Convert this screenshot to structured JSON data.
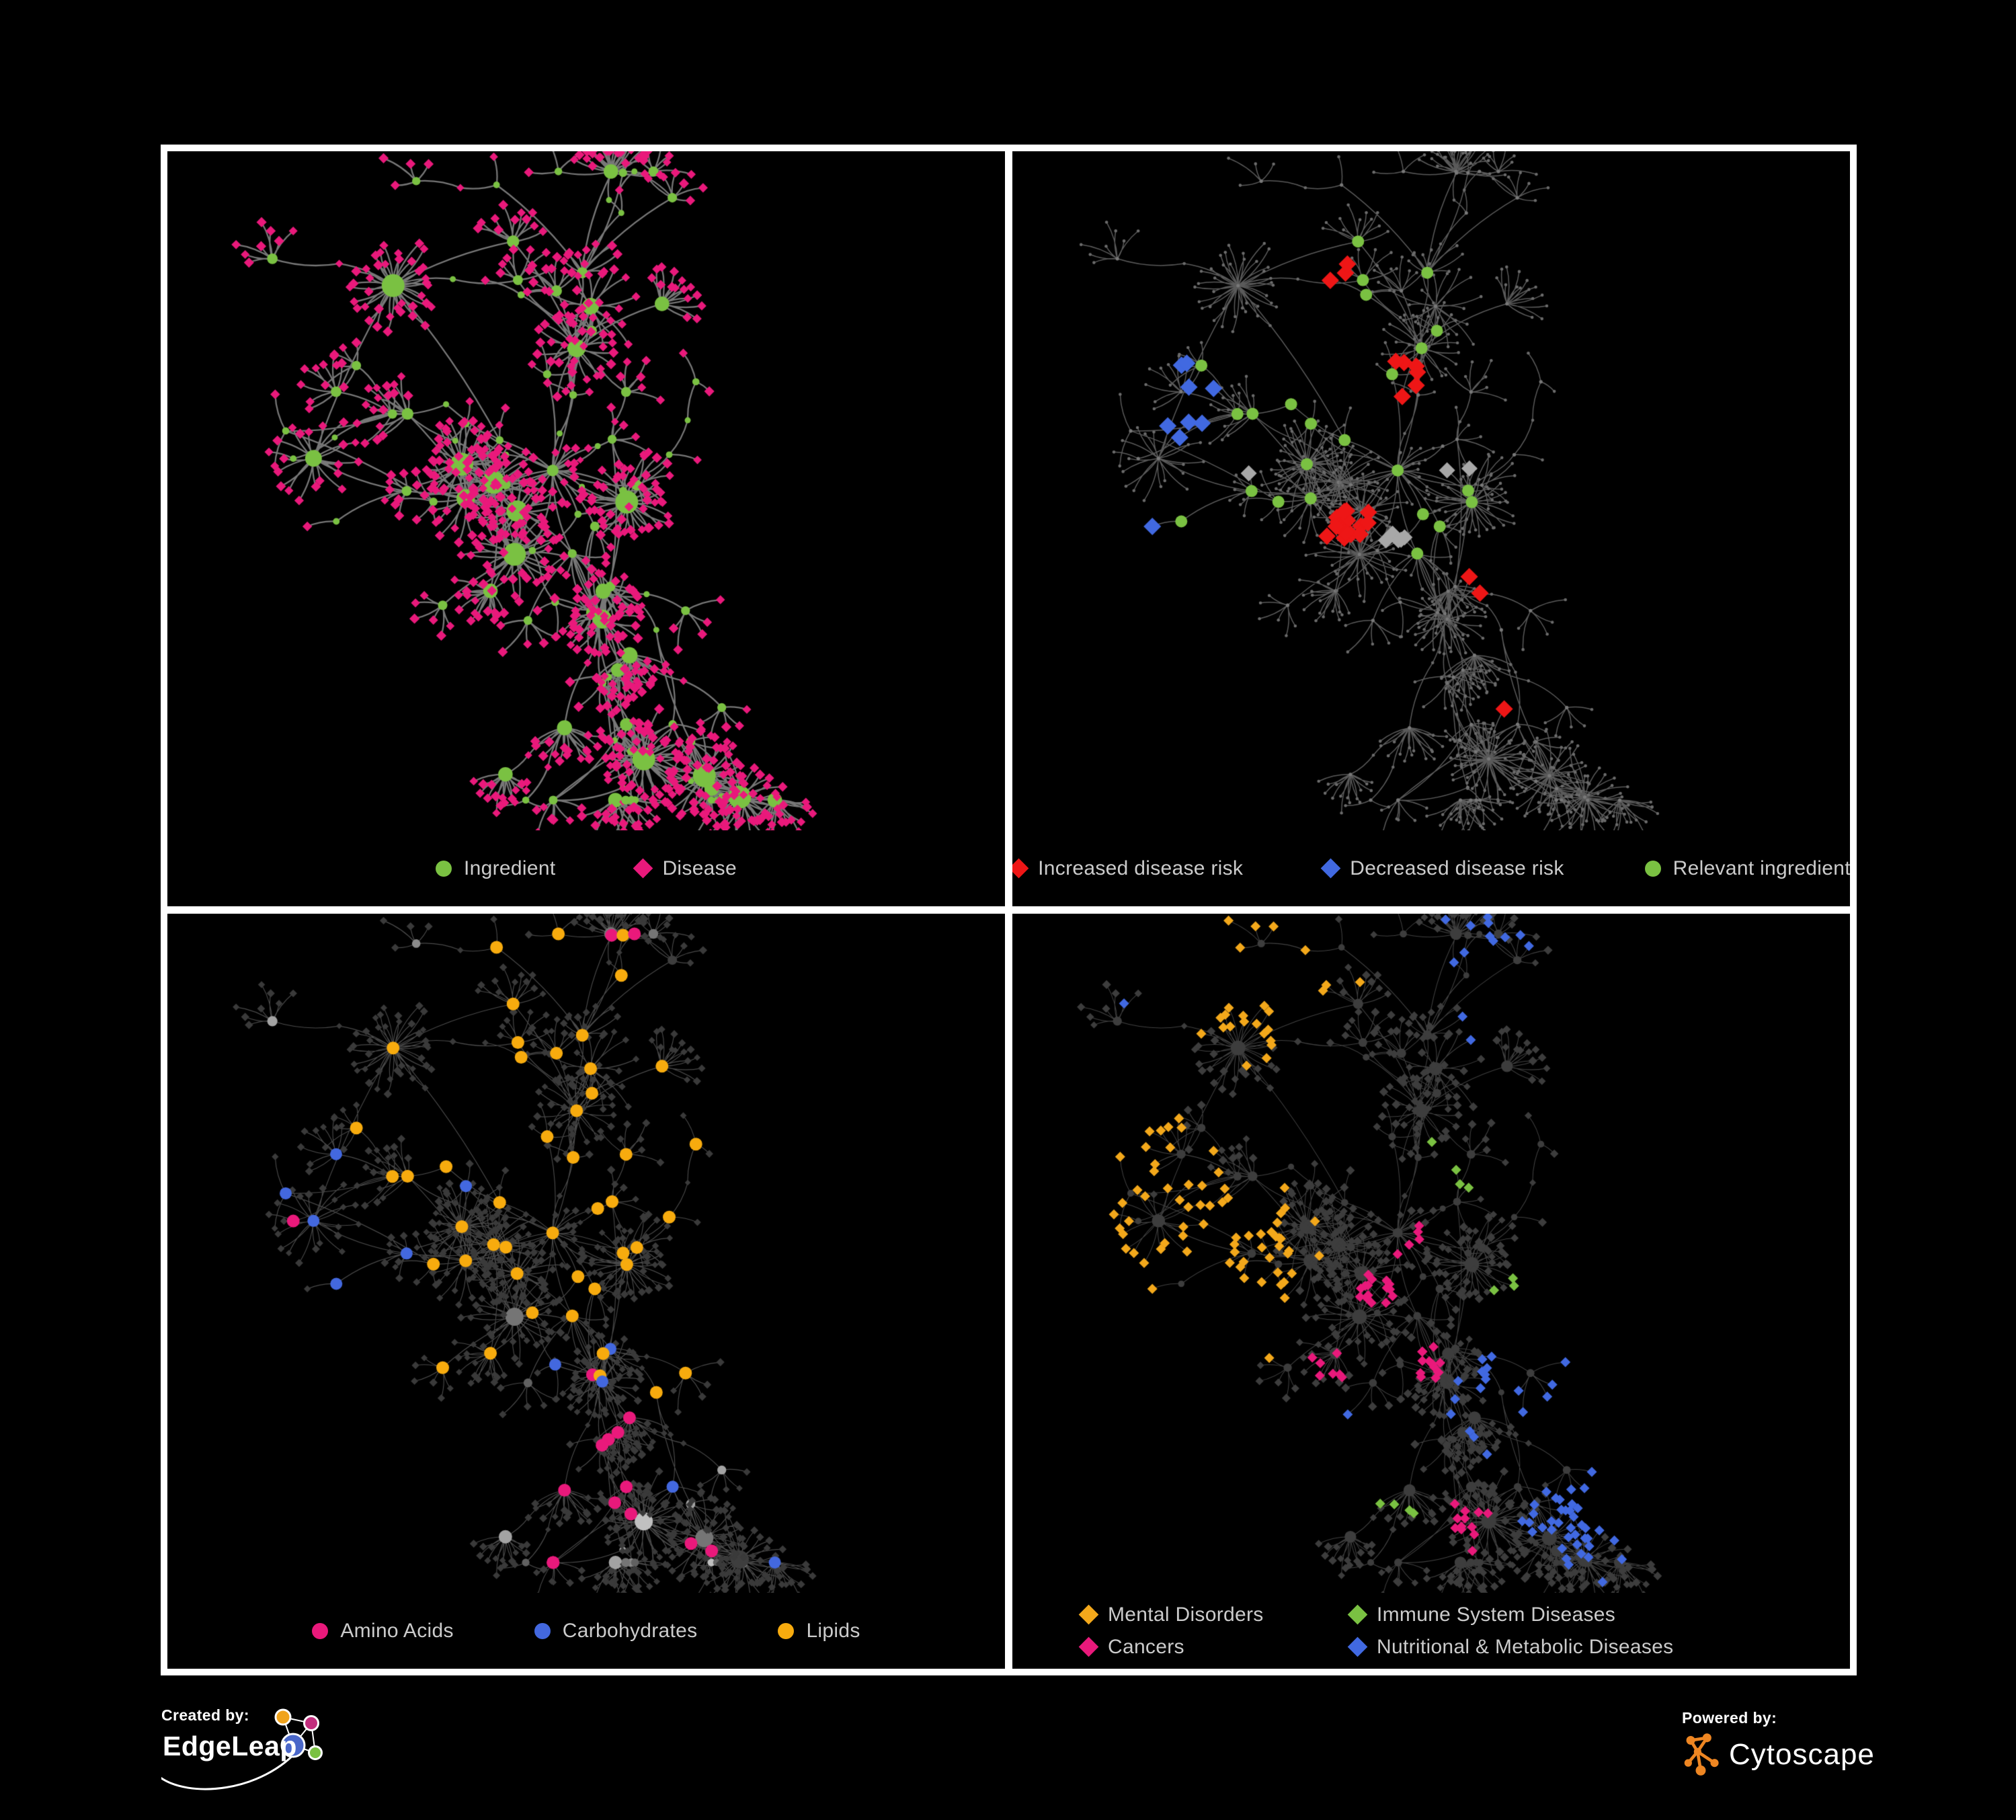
{
  "app": {
    "background": "#000000",
    "frame_color": "#ffffff",
    "legend_text_color": "#cbcbcb"
  },
  "network": {
    "seed": 1337,
    "hub_count": 95,
    "cross_links": 42
  },
  "panels": [
    {
      "id": "ingredient-disease",
      "legend": {
        "layout": "row",
        "items": [
          {
            "label": "Ingredient",
            "shape": "circle",
            "color": "#7ac142"
          },
          {
            "label": "Disease",
            "shape": "diamond",
            "color": "#e9197b"
          }
        ]
      },
      "style": {
        "edge_color": "#7d7d7d",
        "edge_width": 2.3,
        "edge_alpha": 0.95,
        "hub": {
          "shape": "circle",
          "color": "#7ac142",
          "r_min": 4.5,
          "r_scale": 0.42,
          "r_max": 17
        },
        "leaf": {
          "shape": "diamond",
          "color": "#e9197b",
          "s": 7
        },
        "chain": {
          "shape": "diamond",
          "color": "#e9197b",
          "s": 6,
          "mix": true
        }
      },
      "highlight_seed": 0,
      "highlights": []
    },
    {
      "id": "disease-risk",
      "legend": {
        "layout": "row",
        "items": [
          {
            "label": "Increased disease risk",
            "shape": "diamond",
            "color": "#ee1616"
          },
          {
            "label": "Decreased disease risk",
            "shape": "diamond",
            "color": "#4169e1"
          },
          {
            "label": "Relevant ingredient",
            "shape": "circle",
            "color": "#7ac142"
          }
        ]
      },
      "style": {
        "edge_color": "#646464",
        "edge_width": 1.5,
        "edge_alpha": 0.9,
        "hub": {
          "shape": "circle",
          "color": "#787878",
          "r_min": 2.6,
          "r_scale": 0,
          "r_max": 2.6
        },
        "leaf": {
          "shape": "circle",
          "color": "#6b6b6b",
          "r": 2.3
        },
        "chain": {
          "shape": "circle",
          "color": "#6b6b6b",
          "r": 2.3
        }
      },
      "highlight_seed": 201,
      "highlights": [
        {
          "name": "increased-risk",
          "target": "leaf",
          "shape": "diamond",
          "color": "#ee1616",
          "size": 13,
          "count": 27,
          "scatter": 0.5,
          "centers": [
            [
              0.38,
              0.17
            ],
            [
              0.3,
              0.38
            ],
            [
              0.44,
              0.42
            ],
            [
              0.4,
              0.55
            ],
            [
              0.47,
              0.33
            ],
            [
              0.55,
              0.62
            ],
            [
              0.6,
              0.82
            ],
            [
              0.33,
              0.25
            ]
          ]
        },
        {
          "name": "decreased-risk",
          "target": "leaf",
          "shape": "diamond",
          "color": "#4169e1",
          "size": 13,
          "count": 9,
          "scatter": 0.35,
          "centers": [
            [
              0.2,
              0.4
            ],
            [
              0.17,
              0.55
            ],
            [
              0.23,
              0.33
            ],
            [
              0.82,
              0.38
            ]
          ]
        },
        {
          "name": "unclassified-risk",
          "target": "leaf",
          "shape": "diamond",
          "color": "#a8a8a8",
          "size": 12,
          "count": 8,
          "scatter": 0.8,
          "centers": [
            [
              0.28,
              0.45
            ],
            [
              0.46,
              0.57
            ],
            [
              0.62,
              0.63
            ],
            [
              0.52,
              0.46
            ]
          ]
        },
        {
          "name": "relevant-ingredient",
          "target": "hub",
          "shape": "circle",
          "color": "#7ac142",
          "size": 9,
          "count": 24,
          "scatter": 1.2,
          "centers": [
            [
              0.36,
              0.4
            ],
            [
              0.45,
              0.3
            ],
            [
              0.3,
              0.33
            ],
            [
              0.5,
              0.5
            ],
            [
              0.25,
              0.55
            ],
            [
              0.42,
              0.18
            ],
            [
              0.82,
              0.4
            ]
          ]
        }
      ]
    },
    {
      "id": "macronutrients",
      "legend": {
        "layout": "row",
        "items": [
          {
            "label": "Amino Acids",
            "shape": "circle",
            "color": "#e9197b"
          },
          {
            "label": "Carbohydrates",
            "shape": "circle",
            "color": "#4368df"
          },
          {
            "label": "Lipids",
            "shape": "circle",
            "color": "#f7ab0e"
          }
        ]
      },
      "style": {
        "edge_color": "#939393",
        "edge_width": 1.15,
        "edge_alpha": 0.5,
        "hub": {
          "shape": "circle",
          "color": "#9a9a9a",
          "r_min": 5,
          "r_scale": 0.33,
          "r_max": 13.5,
          "palette": [
            "#a3a3a3",
            "#8b8b8b",
            "#757575",
            "#c0c0c0",
            "#616161",
            "#3e3e3e"
          ]
        },
        "leaf": {
          "shape": "diamond",
          "color": "#3a3a3a",
          "s": 5.5
        },
        "chain": {
          "shape": "diamond",
          "color": "#3a3a3a",
          "s": 5
        }
      },
      "highlight_seed": 202,
      "highlights": [
        {
          "name": "lipids",
          "target": "hub",
          "shape": "circle",
          "color": "#f7ab0e",
          "size": 9.5,
          "count": 46,
          "scatter": 0.9,
          "centers": [
            [
              0.52,
              0.28
            ],
            [
              0.47,
              0.36
            ],
            [
              0.57,
              0.47
            ],
            [
              0.37,
              0.52
            ],
            [
              0.33,
              0.3
            ],
            [
              0.63,
              0.6
            ],
            [
              0.45,
              0.15
            ]
          ]
        },
        {
          "name": "amino-acids",
          "target": "hub",
          "shape": "circle",
          "color": "#e9197b",
          "size": 9.5,
          "count": 16,
          "scatter": 2.5,
          "centers": [
            [
              0.08,
              0.42
            ],
            [
              0.3,
              0.72
            ],
            [
              0.52,
              0.8
            ],
            [
              0.7,
              0.55
            ],
            [
              0.47,
              0.12
            ],
            [
              0.88,
              0.42
            ],
            [
              0.25,
              0.9
            ]
          ]
        },
        {
          "name": "carbohydrates",
          "target": "hub",
          "shape": "circle",
          "color": "#4368df",
          "size": 9,
          "count": 11,
          "scatter": 1.2,
          "centers": [
            [
              0.5,
              0.3
            ],
            [
              0.24,
              0.4
            ],
            [
              0.6,
              0.68
            ],
            [
              0.08,
              0.3
            ]
          ]
        }
      ]
    },
    {
      "id": "disease-categories",
      "legend": {
        "layout": "grid",
        "items": [
          {
            "label": "Mental Disorders",
            "shape": "diamond",
            "color": "#f3a81b"
          },
          {
            "label": "Immune System Diseases",
            "shape": "diamond",
            "color": "#7ac142"
          },
          {
            "label": "Cancers",
            "shape": "diamond",
            "color": "#e9197b"
          },
          {
            "label": "Nutritional & Metabolic Diseases",
            "shape": "diamond",
            "color": "#4169e1"
          }
        ]
      },
      "style": {
        "edge_color": "#aaaaaa",
        "edge_width": 1.05,
        "edge_alpha": 0.38,
        "hub": {
          "shape": "circle",
          "color": "#3d3d3d",
          "r_min": 4.5,
          "r_scale": 0.28,
          "r_max": 11
        },
        "leaf": {
          "shape": "diamond",
          "color": "#3d3d3d",
          "s": 6
        },
        "chain": {
          "shape": "diamond",
          "color": "#3d3d3d",
          "s": 5.5
        }
      },
      "highlight_seed": 203,
      "highlights": [
        {
          "name": "mental-disorders",
          "target": "leaf",
          "shape": "diamond",
          "color": "#f3a81b",
          "size": 7.5,
          "count": 95,
          "scatter": 0.45,
          "centers": [
            [
              0.16,
              0.52
            ],
            [
              0.2,
              0.58
            ],
            [
              0.12,
              0.6
            ],
            [
              0.24,
              0.5
            ],
            [
              0.3,
              0.08
            ],
            [
              0.1,
              0.35
            ]
          ]
        },
        {
          "name": "cancers",
          "target": "leaf",
          "shape": "diamond",
          "color": "#e9197b",
          "size": 7.5,
          "count": 52,
          "scatter": 0.6,
          "centers": [
            [
              0.44,
              0.56
            ],
            [
              0.5,
              0.66
            ],
            [
              0.38,
              0.66
            ],
            [
              0.47,
              0.48
            ],
            [
              0.88,
              0.3
            ],
            [
              0.55,
              0.9
            ]
          ]
        },
        {
          "name": "nutritional-metabolic",
          "target": "leaf",
          "shape": "diamond",
          "color": "#4169e1",
          "size": 7.5,
          "count": 72,
          "scatter": 0.9,
          "centers": [
            [
              0.6,
              0.7
            ],
            [
              0.66,
              0.64
            ],
            [
              0.76,
              0.28
            ],
            [
              0.56,
              0.08
            ],
            [
              0.86,
              0.48
            ],
            [
              0.36,
              0.78
            ],
            [
              0.68,
              0.88
            ],
            [
              0.88,
              0.14
            ],
            [
              0.14,
              0.2
            ]
          ]
        },
        {
          "name": "immune-system",
          "target": "leaf",
          "shape": "diamond",
          "color": "#7ac142",
          "size": 7.5,
          "count": 11,
          "scatter": 2.2,
          "centers": [
            [
              0.38,
              0.3
            ],
            [
              0.3,
              0.46
            ],
            [
              0.52,
              0.38
            ],
            [
              0.6,
              0.55
            ],
            [
              0.45,
              0.86
            ]
          ]
        }
      ]
    }
  ],
  "footer": {
    "created_by": {
      "label": "Created by:",
      "brand": "EdgeLeap",
      "logo_colors": {
        "orange": "#f0a31c",
        "magenta": "#c22d7d",
        "blue": "#4a67c9",
        "green": "#7ac142"
      }
    },
    "powered_by": {
      "label": "Powered by:",
      "brand": "Cytoscape",
      "logo_color": "#ee8622"
    }
  }
}
